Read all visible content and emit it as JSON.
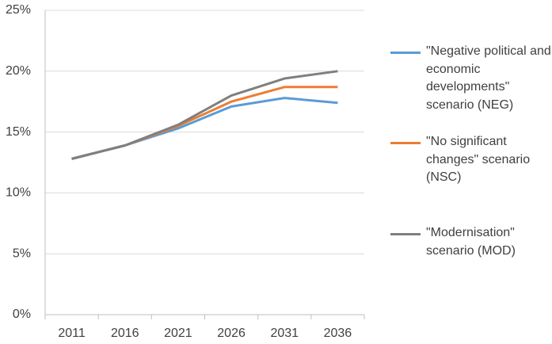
{
  "chart_data": {
    "type": "line",
    "categories": [
      "2011",
      "2016",
      "2021",
      "2026",
      "2031",
      "2036"
    ],
    "series": [
      {
        "name": "\"Negative political and economic developments\" scenario (NEG)",
        "color": "#5b9bd5",
        "values": [
          12.8,
          13.9,
          15.3,
          17.1,
          17.8,
          17.4
        ]
      },
      {
        "name": "\"No significant changes\" scenario (NSC)",
        "color": "#ed7d31",
        "values": [
          12.8,
          13.9,
          15.5,
          17.5,
          18.7,
          18.7
        ]
      },
      {
        "name": "\"Modernisation\" scenario (MOD)",
        "color": "#7f7f7f",
        "values": [
          12.8,
          13.9,
          15.6,
          18.0,
          19.4,
          20.0
        ]
      }
    ],
    "ylim": [
      0,
      25
    ],
    "yticks": [
      {
        "value": 0,
        "label": "0%"
      },
      {
        "value": 5,
        "label": "5%"
      },
      {
        "value": 10,
        "label": "10%"
      },
      {
        "value": 15,
        "label": "15%"
      },
      {
        "value": 20,
        "label": "20%"
      },
      {
        "value": 25,
        "label": "25%"
      }
    ],
    "grid": true,
    "legend": "right"
  }
}
